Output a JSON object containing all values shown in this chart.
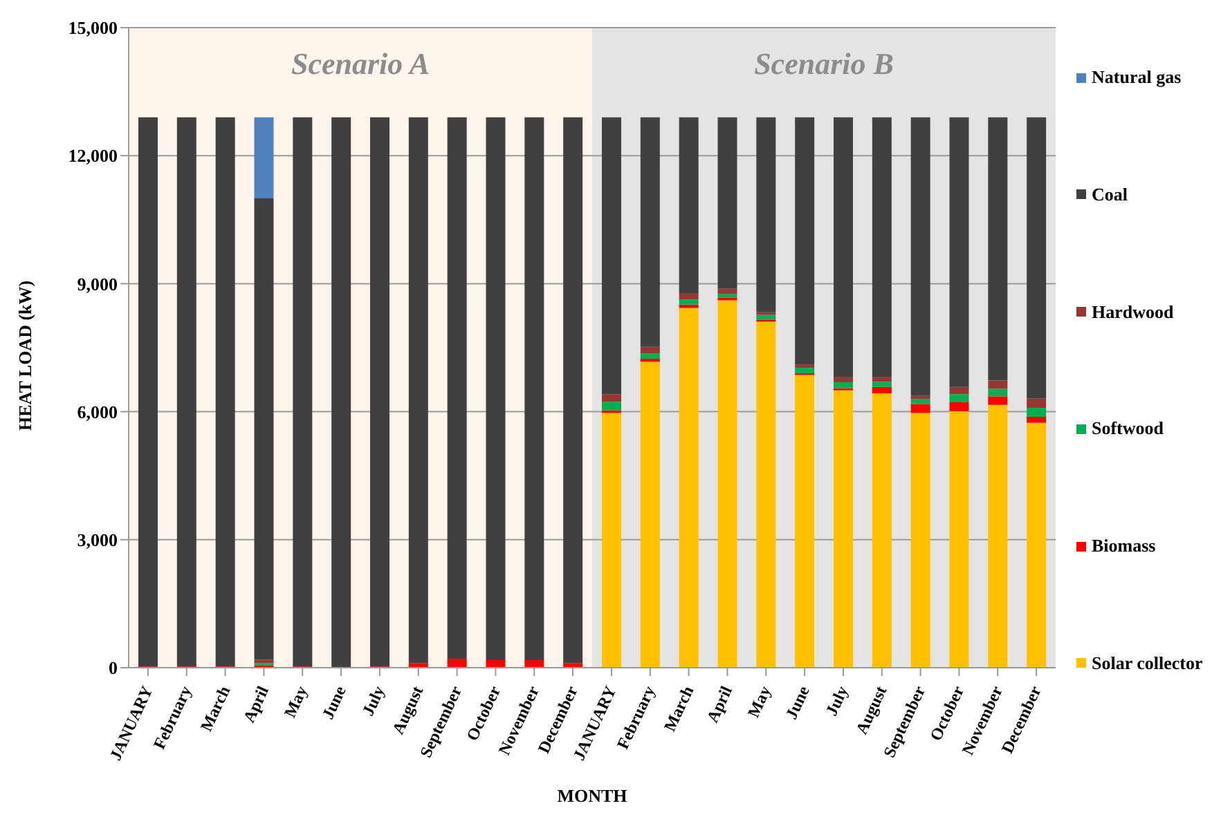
{
  "chart_data": {
    "type": "bar",
    "stacked": true,
    "xlabel": "MONTH",
    "ylabel": "HEAT LOAD  (kW)",
    "categories": [
      "JANUARY",
      "February",
      "March",
      "April",
      "May",
      "June",
      "July",
      "August",
      "September",
      "October",
      "November",
      "December",
      "JANUARY",
      "February",
      "March",
      "April",
      "May",
      "June",
      "July",
      "August",
      "September",
      "October",
      "November",
      "December"
    ],
    "series": [
      {
        "name": "Solar collector",
        "color": "#ffc000",
        "values": [
          0,
          0,
          0,
          0,
          0,
          0,
          0,
          0,
          0,
          0,
          0,
          0,
          5970,
          7170,
          8430,
          8610,
          8110,
          6860,
          6500,
          6430,
          5970,
          6010,
          6160,
          5740
        ]
      },
      {
        "name": "Biomass",
        "color": "#ff0000",
        "values": [
          30,
          30,
          30,
          50,
          30,
          0,
          30,
          110,
          210,
          180,
          180,
          110,
          60,
          70,
          80,
          60,
          40,
          40,
          50,
          150,
          210,
          210,
          200,
          140
        ]
      },
      {
        "name": "Softwood",
        "color": "#00b050",
        "values": [
          0,
          0,
          0,
          60,
          0,
          0,
          0,
          0,
          0,
          0,
          0,
          0,
          200,
          120,
          120,
          90,
          120,
          130,
          140,
          120,
          120,
          190,
          180,
          210
        ]
      },
      {
        "name": "Hardwood",
        "color": "#953735",
        "values": [
          0,
          0,
          0,
          80,
          0,
          0,
          0,
          0,
          0,
          0,
          0,
          0,
          180,
          160,
          150,
          130,
          60,
          80,
          130,
          120,
          70,
          170,
          190,
          220
        ]
      },
      {
        "name": "Coal",
        "color": "#404040",
        "values": [
          12870,
          12870,
          12870,
          10810,
          12870,
          12900,
          12870,
          12790,
          12690,
          12720,
          12720,
          12790,
          6490,
          5380,
          4120,
          4010,
          4570,
          5790,
          6080,
          6080,
          6530,
          6320,
          6170,
          6590
        ]
      },
      {
        "name": "Natural gas",
        "color": "#4f81bd",
        "values": [
          0,
          0,
          0,
          1900,
          0,
          0,
          0,
          0,
          0,
          0,
          0,
          0,
          0,
          0,
          0,
          0,
          0,
          0,
          0,
          0,
          0,
          0,
          0,
          0
        ]
      }
    ],
    "ylim": [
      0,
      15000
    ],
    "yticks": [
      {
        "value": 0,
        "label": "0"
      },
      {
        "value": 3000,
        "label": "3,000"
      },
      {
        "value": 6000,
        "label": "6,000"
      },
      {
        "value": 9000,
        "label": "9,000"
      },
      {
        "value": 12000,
        "label": "12,000"
      },
      {
        "value": 15000,
        "label": "15,000"
      }
    ],
    "annotations": [
      "Scenario A",
      "Scenario B"
    ],
    "grid": "y",
    "legend": "right"
  }
}
